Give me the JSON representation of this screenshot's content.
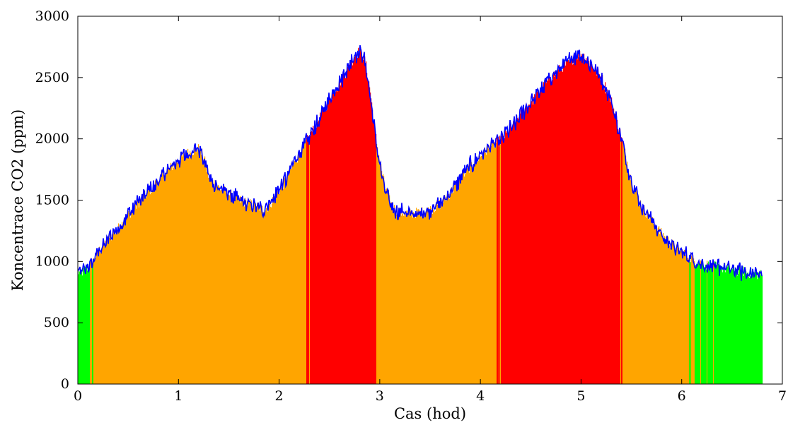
{
  "chart_data": {
    "type": "area",
    "title": "",
    "xlabel": "Cas (hod)",
    "ylabel": "Koncentrace CO2 (ppm)",
    "xlim": [
      0,
      7
    ],
    "ylim": [
      0,
      3000
    ],
    "xticks": [
      0,
      1,
      2,
      3,
      4,
      5,
      6,
      7
    ],
    "yticks": [
      0,
      500,
      1000,
      1500,
      2000,
      2500,
      3000
    ],
    "x_end": 6.8,
    "grid": false,
    "legend": "none",
    "colors": {
      "line": "#0000ff",
      "fill_low": "#00ff00",
      "fill_mid": "#ffa500",
      "fill_high": "#ff0000"
    },
    "fill_thresholds": [
      1000,
      2000
    ],
    "series": [
      {
        "x": [
          0,
          0.02,
          0.05,
          0.1,
          0.15,
          0.2,
          0.3,
          0.4,
          0.5,
          0.6,
          0.7,
          0.8,
          0.9,
          1.0,
          1.1,
          1.2,
          1.25,
          1.3,
          1.4,
          1.5,
          1.6,
          1.7,
          1.8,
          1.85,
          1.9,
          2.0,
          2.1,
          2.2,
          2.3,
          2.4,
          2.5,
          2.6,
          2.7,
          2.75,
          2.8,
          2.85,
          2.9,
          2.95,
          3.0,
          3.05,
          3.1,
          3.15,
          3.2,
          3.3,
          3.4,
          3.5,
          3.6,
          3.7,
          3.8,
          3.9,
          4.0,
          4.1,
          4.2,
          4.3,
          4.4,
          4.5,
          4.6,
          4.7,
          4.8,
          4.9,
          4.95,
          5.0,
          5.05,
          5.1,
          5.2,
          5.3,
          5.4,
          5.5,
          5.6,
          5.7,
          5.8,
          5.9,
          6.0,
          6.1,
          6.2,
          6.3,
          6.4,
          6.5,
          6.6,
          6.7,
          6.8
        ],
        "values": [
          920,
          900,
          920,
          960,
          1000,
          1080,
          1180,
          1270,
          1380,
          1480,
          1570,
          1660,
          1750,
          1830,
          1890,
          1920,
          1840,
          1680,
          1600,
          1550,
          1500,
          1470,
          1440,
          1420,
          1460,
          1580,
          1720,
          1880,
          2020,
          2170,
          2320,
          2460,
          2600,
          2680,
          2720,
          2640,
          2400,
          2050,
          1800,
          1600,
          1480,
          1420,
          1400,
          1390,
          1400,
          1420,
          1470,
          1560,
          1680,
          1780,
          1860,
          1940,
          1990,
          2080,
          2200,
          2300,
          2400,
          2500,
          2580,
          2640,
          2680,
          2690,
          2660,
          2600,
          2500,
          2300,
          2000,
          1650,
          1450,
          1330,
          1220,
          1140,
          1080,
          1020,
          980,
          960,
          950,
          930,
          920,
          900,
          890
        ]
      }
    ]
  }
}
